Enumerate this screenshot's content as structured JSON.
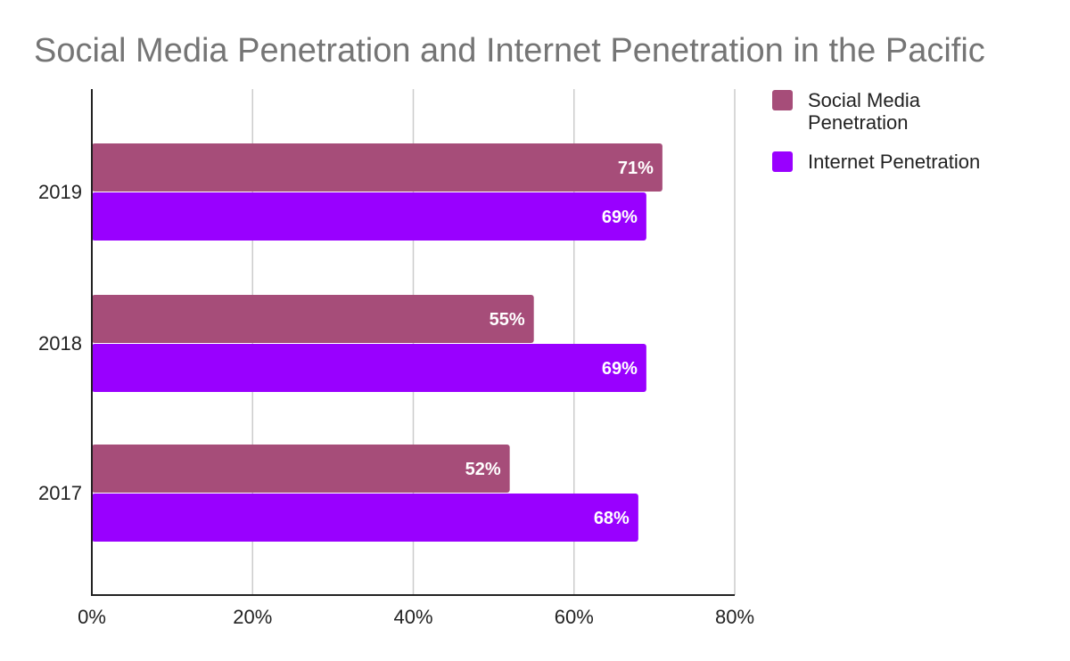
{
  "chart_data": {
    "type": "bar",
    "orientation": "horizontal",
    "title": "Social Media Penetration and Internet Penetration in the Pacific",
    "categories": [
      "2019",
      "2018",
      "2017"
    ],
    "series": [
      {
        "name": "Social Media Penetration",
        "color": "#a64d79",
        "values": [
          71,
          55,
          52
        ],
        "data_labels": [
          "71%",
          "55%",
          "52%"
        ]
      },
      {
        "name": "Internet Penetration",
        "color": "#9900ff",
        "values": [
          69,
          69,
          68
        ],
        "data_labels": [
          "69%",
          "69%",
          "68%"
        ]
      }
    ],
    "xlim": [
      0,
      80
    ],
    "x_ticks": [
      0,
      20,
      40,
      60,
      80
    ],
    "x_tick_labels": [
      "0%",
      "20%",
      "40%",
      "60%",
      "80%"
    ],
    "xlabel": "",
    "ylabel": "",
    "grid": "vertical",
    "legend_position": "right"
  }
}
